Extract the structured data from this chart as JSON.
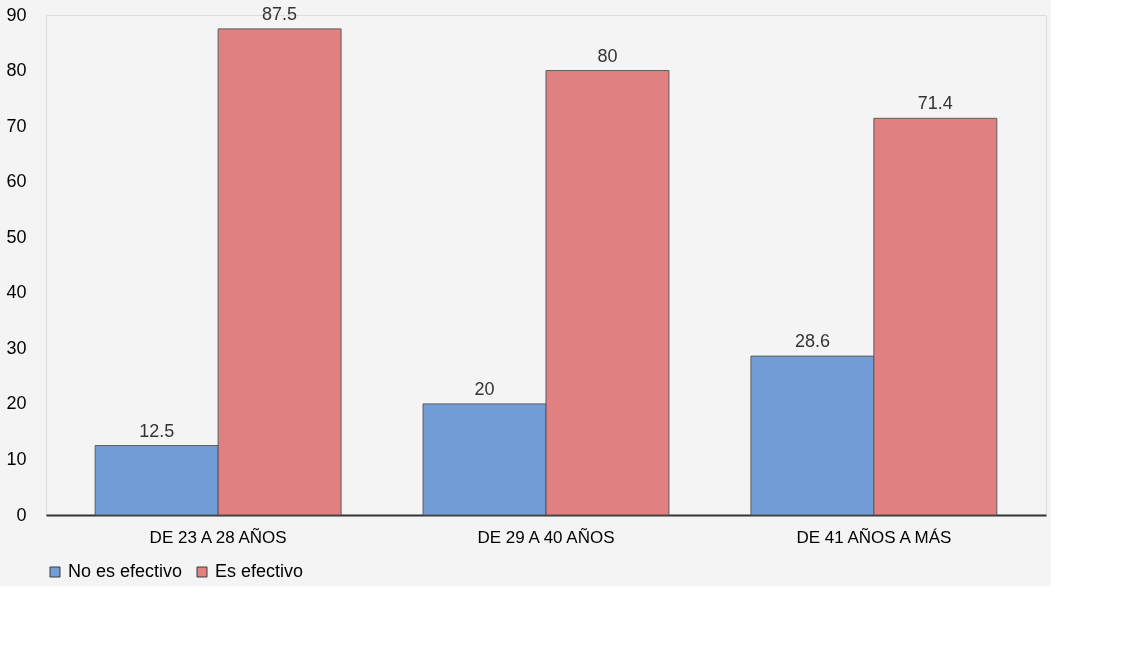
{
  "chart_data": {
    "type": "bar",
    "categories": [
      "DE 23 A 28 AÑOS",
      "DE 29 A 40 AÑOS",
      "DE 41 AÑOS A MÁS"
    ],
    "series": [
      {
        "name": "No es efectivo",
        "color": "#6a98d4",
        "values": [
          12.5,
          20,
          28.6
        ]
      },
      {
        "name": "Es efectivo",
        "color": "#e07a7a",
        "values": [
          87.5,
          80,
          71.4
        ]
      }
    ],
    "ylim": [
      0,
      90
    ],
    "yticks": [
      0,
      10,
      20,
      30,
      40,
      50,
      60,
      70,
      80,
      90
    ],
    "grid": false,
    "legend": "bottom",
    "data_labels": true
  }
}
